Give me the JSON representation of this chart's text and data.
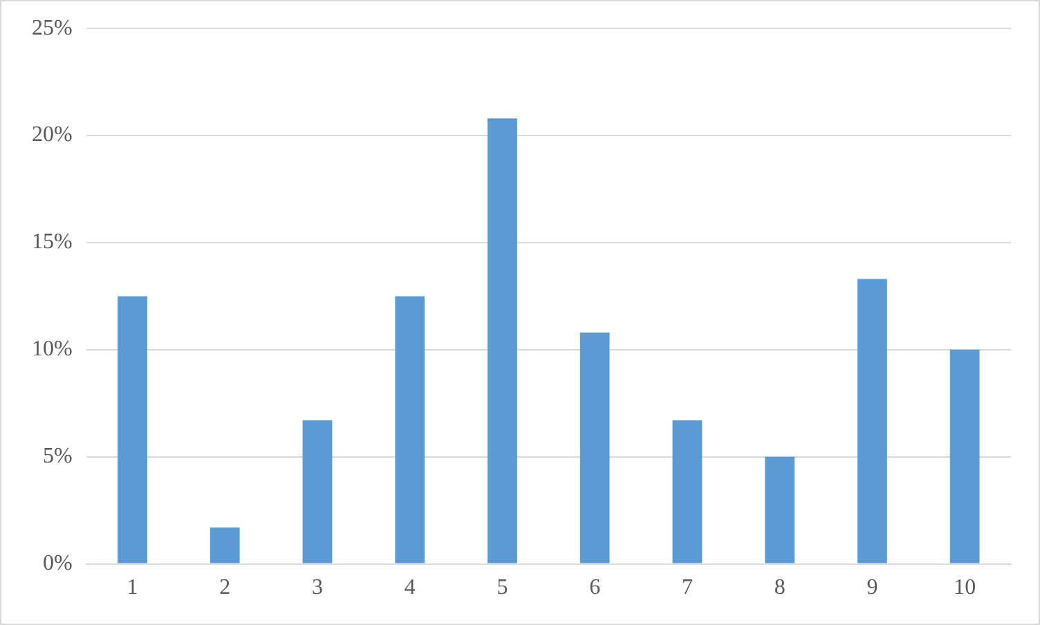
{
  "chart_data": {
    "type": "bar",
    "categories": [
      "1",
      "2",
      "3",
      "4",
      "5",
      "6",
      "7",
      "8",
      "9",
      "10"
    ],
    "values": [
      12.5,
      1.7,
      6.7,
      12.5,
      20.8,
      10.8,
      6.7,
      5,
      13.3,
      10
    ],
    "color": "#5b9bd5",
    "ylim": [
      0,
      25
    ],
    "yticks": [
      {
        "value": 0,
        "label": "0%"
      },
      {
        "value": 5,
        "label": "5%"
      },
      {
        "value": 10,
        "label": "10%"
      },
      {
        "value": 15,
        "label": "15%"
      },
      {
        "value": 20,
        "label": "20%"
      },
      {
        "value": 25,
        "label": "25%"
      }
    ],
    "grid": "y",
    "legend": false
  }
}
